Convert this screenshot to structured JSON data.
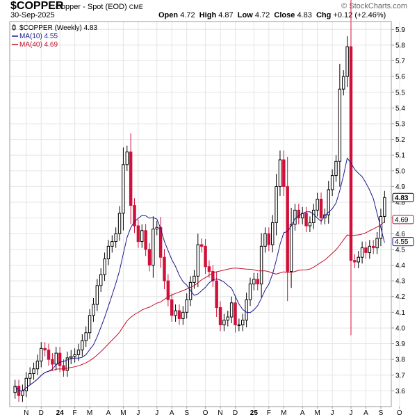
{
  "header": {
    "symbol": "$COPPER",
    "description": "Copper - Spot (EOD)",
    "exchange": "CME",
    "date": "30-Sep-2025",
    "open_label": "Open",
    "open": "4.72",
    "high_label": "High",
    "high": "4.87",
    "low_label": "Low",
    "low": "4.72",
    "close_label": "Close",
    "close": "4.83",
    "chg_label": "Chg",
    "chg": "+0.12 (+2.46%)",
    "watermark": "© StockCharts.com"
  },
  "colors": {
    "up": "#000000",
    "down": "#d0103a",
    "ma10": "#1a1a8c",
    "ma40": "#c0102a",
    "grid": "#e4e4e4"
  },
  "chart_data": {
    "type": "candlestick",
    "interval": "weekly",
    "ylim": [
      3.5,
      5.95
    ],
    "yticks": [
      3.6,
      3.7,
      3.8,
      3.9,
      4.0,
      4.1,
      4.2,
      4.3,
      4.4,
      4.5,
      4.6,
      4.7,
      4.8,
      4.9,
      5.0,
      5.1,
      5.2,
      5.3,
      5.4,
      5.5,
      5.6,
      5.7,
      5.8,
      5.9
    ],
    "month_ticks": [
      {
        "i": 3,
        "label": "N"
      },
      {
        "i": 7,
        "label": "D"
      },
      {
        "i": 12,
        "label": "24"
      },
      {
        "i": 16,
        "label": "F"
      },
      {
        "i": 20,
        "label": "M"
      },
      {
        "i": 25,
        "label": "A"
      },
      {
        "i": 29,
        "label": "M"
      },
      {
        "i": 33,
        "label": "J"
      },
      {
        "i": 38,
        "label": "J"
      },
      {
        "i": 42,
        "label": "A"
      },
      {
        "i": 46,
        "label": "S"
      },
      {
        "i": 51,
        "label": "O"
      },
      {
        "i": 55,
        "label": "N"
      },
      {
        "i": 59,
        "label": "D"
      },
      {
        "i": 64,
        "label": "25"
      },
      {
        "i": 68,
        "label": "F"
      },
      {
        "i": 72,
        "label": "M"
      },
      {
        "i": 77,
        "label": "A"
      },
      {
        "i": 81,
        "label": "M"
      },
      {
        "i": 85,
        "label": "J"
      },
      {
        "i": 90,
        "label": "J"
      },
      {
        "i": 94,
        "label": "A"
      },
      {
        "i": 98,
        "label": "S"
      },
      {
        "i": 103,
        "label": "O"
      }
    ],
    "close_series": [
      3.63,
      3.57,
      3.6,
      3.68,
      3.71,
      3.74,
      3.79,
      3.87,
      3.86,
      3.8,
      3.77,
      3.84,
      3.76,
      3.73,
      3.81,
      3.82,
      3.83,
      3.86,
      3.92,
      3.97,
      4.08,
      4.15,
      4.27,
      4.34,
      4.44,
      4.52,
      4.55,
      4.6,
      4.73,
      5.04,
      5.12,
      4.78,
      4.65,
      4.55,
      4.62,
      4.5,
      4.4,
      4.63,
      4.64,
      4.45,
      4.3,
      4.18,
      4.08,
      4.11,
      4.06,
      4.1,
      4.18,
      4.29,
      4.33,
      4.53,
      4.52,
      4.39,
      4.36,
      4.3,
      4.13,
      4.02,
      4.05,
      4.07,
      4.16,
      4.02,
      4.02,
      4.05,
      4.18,
      4.28,
      4.31,
      4.28,
      4.52,
      4.6,
      4.53,
      4.67,
      4.9,
      5.07,
      4.9,
      4.36,
      4.66,
      4.75,
      4.7,
      4.73,
      4.65,
      4.67,
      4.75,
      4.82,
      4.7,
      4.72,
      4.88,
      4.97,
      5.06,
      5.52,
      5.6,
      5.79,
      4.43,
      4.42,
      4.45,
      4.51,
      4.48,
      4.52,
      4.51,
      4.57,
      4.71,
      4.83
    ],
    "series": [
      {
        "name": "$COPPER (Weekly)",
        "last": "4.83"
      },
      {
        "name": "MA(10)",
        "last": "4.55"
      },
      {
        "name": "MA(40)",
        "last": "4.69"
      }
    ],
    "price_labels": [
      "4.83",
      "4.69",
      "4.55"
    ]
  }
}
